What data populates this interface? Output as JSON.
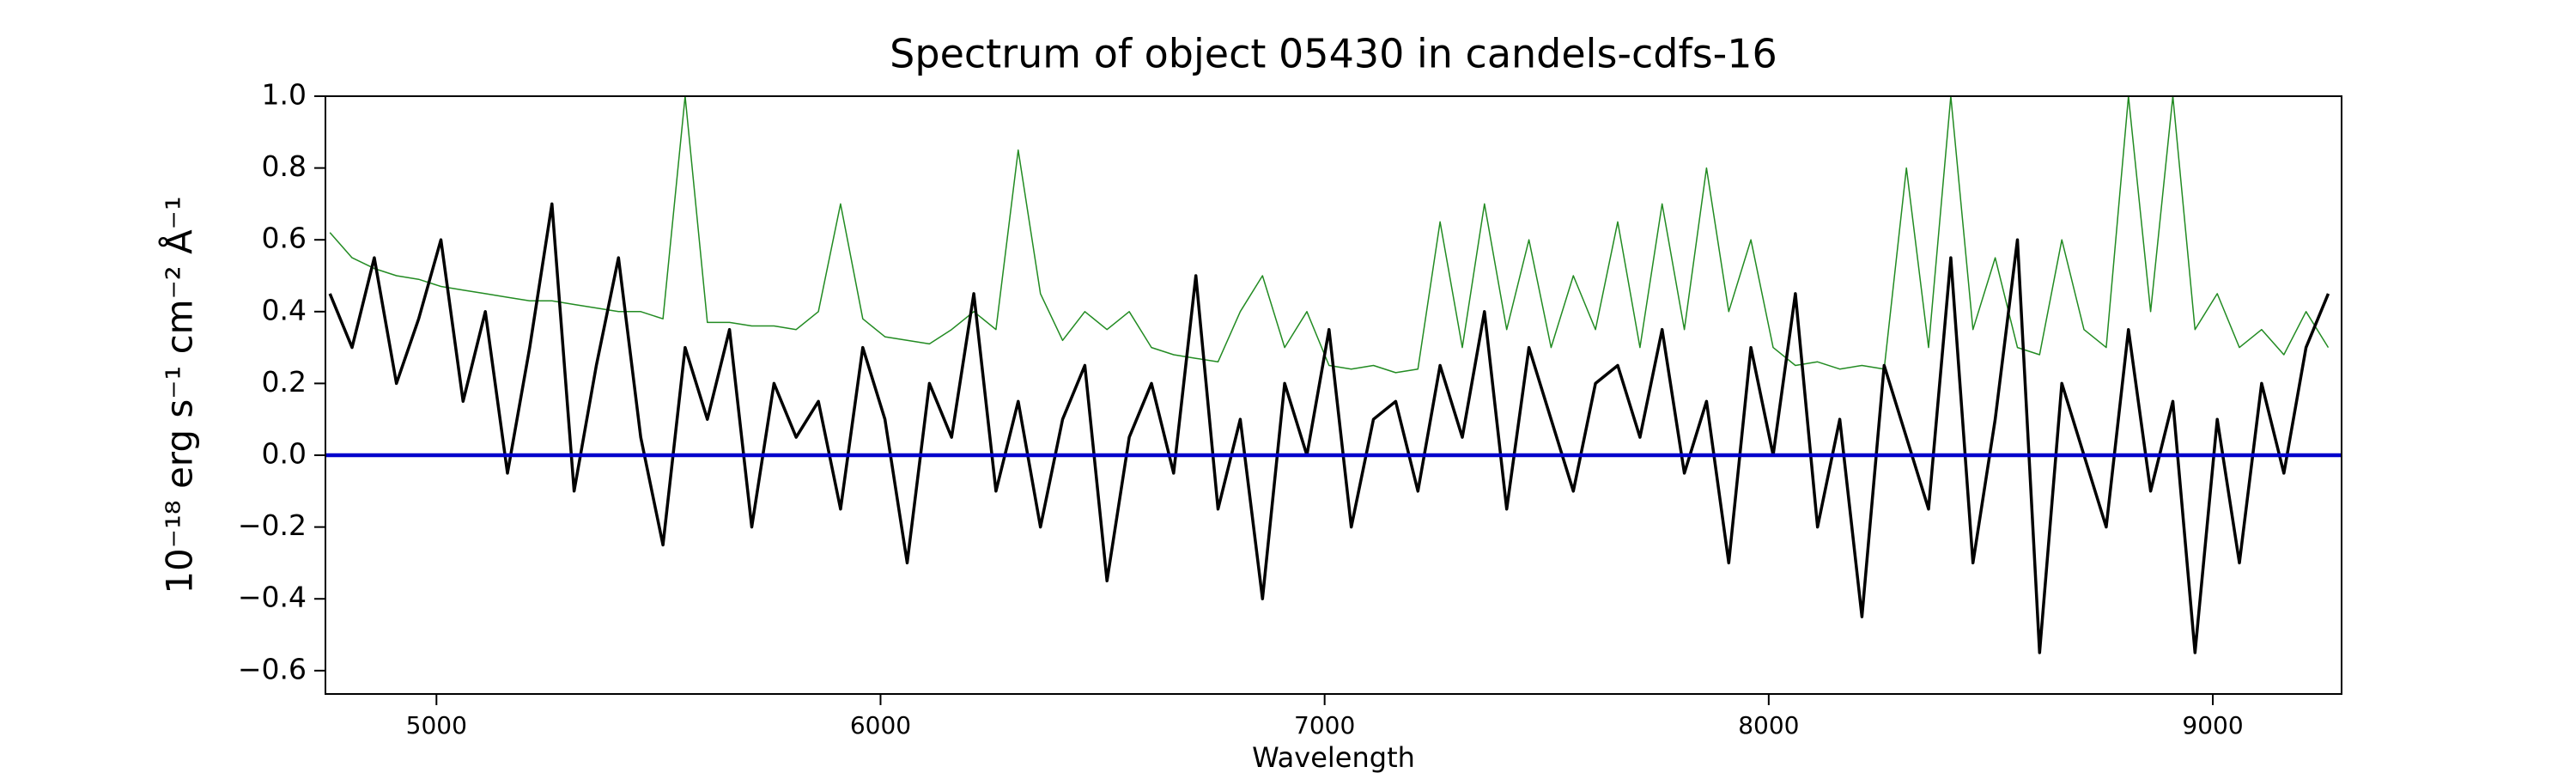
{
  "chart_data": {
    "type": "line",
    "title": "Spectrum of object 05430 in candels-cdfs-16",
    "x_label": "Wavelength",
    "y_label": "10⁻¹⁸ erg s⁻¹ cm⁻² Å⁻¹",
    "xlim": [
      4750,
      9290
    ],
    "ylim": [
      -0.665,
      1.0
    ],
    "xticks": [
      5000,
      6000,
      7000,
      8000,
      9000
    ],
    "yticks": [
      {
        "value": -0.6,
        "label": "−0.6"
      },
      {
        "value": -0.4,
        "label": "−0.4"
      },
      {
        "value": -0.2,
        "label": "−0.2"
      },
      {
        "value": 0.0,
        "label": "0.0"
      },
      {
        "value": 0.2,
        "label": "0.2"
      },
      {
        "value": 0.4,
        "label": "0.4"
      },
      {
        "value": 0.6,
        "label": "0.6"
      },
      {
        "value": 0.8,
        "label": "0.8"
      },
      {
        "value": 1.0,
        "label": "1.0"
      }
    ],
    "grid": false,
    "x": [
      4760,
      4810,
      4860,
      4910,
      4960,
      5010,
      5060,
      5110,
      5160,
      5210,
      5260,
      5310,
      5360,
      5410,
      5460,
      5510,
      5560,
      5610,
      5660,
      5710,
      5760,
      5810,
      5860,
      5910,
      5960,
      6010,
      6060,
      6110,
      6160,
      6210,
      6260,
      6310,
      6360,
      6410,
      6460,
      6510,
      6560,
      6610,
      6660,
      6710,
      6760,
      6810,
      6860,
      6910,
      6960,
      7010,
      7060,
      7110,
      7160,
      7210,
      7260,
      7310,
      7360,
      7410,
      7460,
      7510,
      7560,
      7610,
      7660,
      7710,
      7760,
      7810,
      7860,
      7910,
      7960,
      8010,
      8060,
      8110,
      8160,
      8210,
      8260,
      8310,
      8360,
      8410,
      8460,
      8510,
      8560,
      8610,
      8660,
      8710,
      8760,
      8810,
      8860,
      8910,
      8960,
      9010,
      9060,
      9110,
      9160,
      9210,
      9260
    ],
    "series": [
      {
        "color": "#228b22",
        "width": 1.5,
        "values": [
          0.62,
          0.55,
          0.52,
          0.5,
          0.49,
          0.47,
          0.46,
          0.45,
          0.44,
          0.43,
          0.43,
          0.42,
          0.41,
          0.4,
          0.4,
          0.38,
          1.0,
          0.37,
          0.37,
          0.36,
          0.36,
          0.35,
          0.4,
          0.7,
          0.38,
          0.33,
          0.32,
          0.31,
          0.35,
          0.4,
          0.35,
          0.85,
          0.45,
          0.32,
          0.4,
          0.35,
          0.4,
          0.3,
          0.28,
          0.27,
          0.26,
          0.4,
          0.5,
          0.3,
          0.4,
          0.25,
          0.24,
          0.25,
          0.23,
          0.24,
          0.65,
          0.3,
          0.7,
          0.35,
          0.6,
          0.3,
          0.5,
          0.35,
          0.65,
          0.3,
          0.7,
          0.35,
          0.8,
          0.4,
          0.6,
          0.3,
          0.25,
          0.26,
          0.24,
          0.25,
          0.24,
          0.8,
          0.3,
          1.0,
          0.35,
          0.55,
          0.3,
          0.28,
          0.6,
          0.35,
          0.3,
          1.0,
          0.4,
          1.0,
          0.35,
          0.45,
          0.3,
          0.35,
          0.28,
          0.4,
          0.3
        ]
      },
      {
        "color": "#000000",
        "width": 3.5,
        "values": [
          0.45,
          0.3,
          0.55,
          0.2,
          0.38,
          0.6,
          0.15,
          0.4,
          -0.05,
          0.3,
          0.7,
          -0.1,
          0.25,
          0.55,
          0.05,
          -0.25,
          0.3,
          0.1,
          0.35,
          -0.2,
          0.2,
          0.05,
          0.15,
          -0.15,
          0.3,
          0.1,
          -0.3,
          0.2,
          0.05,
          0.45,
          -0.1,
          0.15,
          -0.2,
          0.1,
          0.25,
          -0.35,
          0.05,
          0.2,
          -0.05,
          0.5,
          -0.15,
          0.1,
          -0.4,
          0.2,
          0.0,
          0.35,
          -0.2,
          0.1,
          0.15,
          -0.1,
          0.25,
          0.05,
          0.4,
          -0.15,
          0.3,
          0.1,
          -0.1,
          0.2,
          0.25,
          0.05,
          0.35,
          -0.05,
          0.15,
          -0.3,
          0.3,
          0.0,
          0.45,
          -0.2,
          0.1,
          -0.45,
          0.25,
          0.05,
          -0.15,
          0.55,
          -0.3,
          0.1,
          0.6,
          -0.55,
          0.2,
          0.0,
          -0.2,
          0.35,
          -0.1,
          0.15,
          -0.55,
          0.1,
          -0.3,
          0.2,
          -0.05,
          0.3,
          0.45
        ]
      },
      {
        "color": "#0000cc",
        "width": 4.5,
        "x": [
          4750,
          9290
        ],
        "values": [
          0.0,
          0.0
        ]
      }
    ]
  }
}
